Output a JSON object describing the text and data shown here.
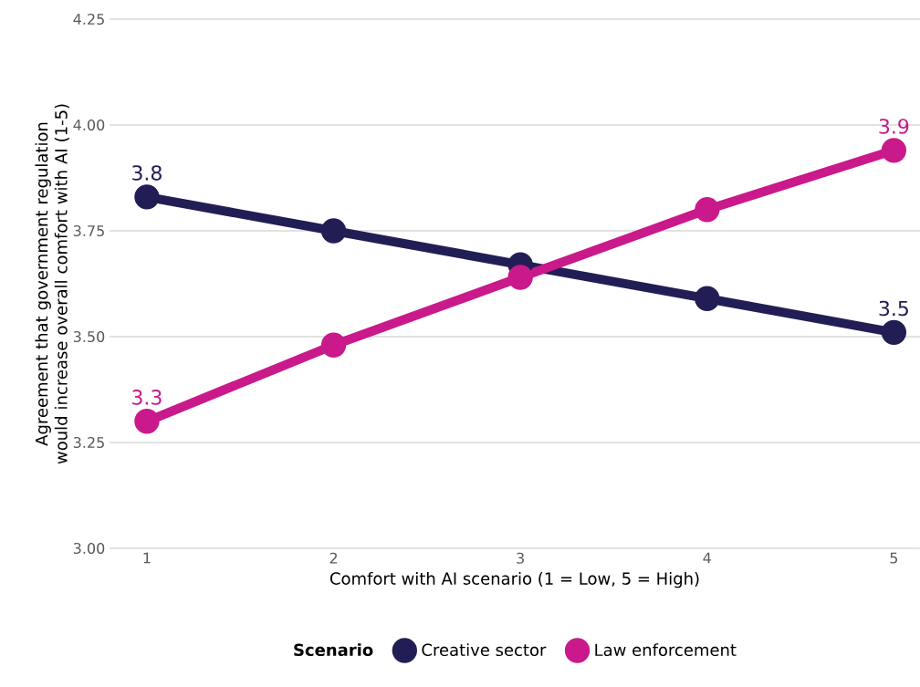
{
  "chart_data": {
    "type": "line",
    "xlabel": "Comfort with AI scenario (1 = Low, 5 = High)",
    "ylabel": "Agreement that government regulation would increase overall comfort with AI (1-5)",
    "legend_title": "Scenario",
    "x": [
      1,
      2,
      3,
      4,
      5
    ],
    "series": [
      {
        "name": "Creative sector",
        "color": "#221e55",
        "values": [
          3.83,
          3.75,
          3.67,
          3.59,
          3.51
        ],
        "value_labels": [
          "3.8",
          null,
          null,
          null,
          "3.5"
        ]
      },
      {
        "name": "Law enforcement",
        "color": "#c9198b",
        "values": [
          3.3,
          3.48,
          3.64,
          3.8,
          3.94
        ],
        "value_labels": [
          "3.3",
          null,
          null,
          null,
          "3.9"
        ]
      }
    ],
    "xlim": [
      0.8,
      5.14
    ],
    "ylim": [
      3,
      4.25
    ],
    "xticks": [
      1,
      2,
      3,
      4,
      5
    ],
    "yticks": [
      {
        "value": 3,
        "label": "3.00"
      },
      {
        "value": 3.25,
        "label": "3.25"
      },
      {
        "value": 3.5,
        "label": "3.50"
      },
      {
        "value": 3.75,
        "label": "3.75"
      },
      {
        "value": 4,
        "label": "4.00"
      },
      {
        "value": 4.25,
        "label": "4.25"
      }
    ],
    "grid": "y",
    "legend": "bottom",
    "marker": "circle",
    "line_style": "solid"
  }
}
